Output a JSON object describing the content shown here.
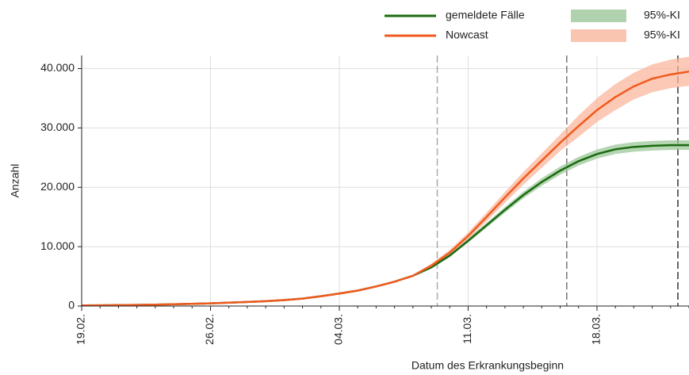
{
  "chart_data": {
    "type": "line",
    "x_label": "Datum des Erkrankungsbeginn",
    "y_label": "Anzahl",
    "categories": [
      "19.02.",
      null,
      null,
      null,
      null,
      null,
      null,
      "26.02.",
      null,
      null,
      null,
      null,
      null,
      null,
      "04.03.",
      null,
      null,
      null,
      null,
      null,
      null,
      "11.03.",
      null,
      null,
      null,
      null,
      null,
      null,
      "18.03.",
      null,
      null,
      null,
      null,
      null
    ],
    "ylim": [
      0,
      42200
    ],
    "yticks": [
      0,
      {
        "value": 10000,
        "label": "10.000"
      },
      {
        "value": 20000,
        "label": "20.000"
      },
      {
        "value": 30000,
        "label": "30.000"
      },
      {
        "value": 40000,
        "label": "40.000"
      }
    ],
    "grid": true,
    "series": [
      {
        "name": "gemeldete Fälle",
        "color": "#1a6b10",
        "values": [
          100,
          120,
          150,
          190,
          240,
          300,
          360,
          450,
          560,
          680,
          820,
          1000,
          1250,
          1650,
          2100,
          2600,
          3300,
          4100,
          5100,
          6500,
          8500,
          11000,
          13600,
          16200,
          18700,
          20900,
          22800,
          24400,
          25600,
          26400,
          26800,
          27000,
          27100,
          27100
        ],
        "band": {
          "name": "95%-KI",
          "color": "#9cc79a",
          "lower": [
            97,
            116,
            146,
            184,
            233,
            291,
            349,
            437,
            543,
            660,
            795,
            970,
            1213,
            1600,
            2037,
            2522,
            3201,
            3977,
            4947,
            6305,
            8245,
            10670,
            13192,
            15714,
            18139,
            20273,
            22116,
            23668,
            24832,
            25608,
            25996,
            26190,
            26287,
            26287
          ],
          "upper": [
            103,
            124,
            155,
            196,
            247,
            309,
            371,
            464,
            577,
            700,
            845,
            1030,
            1288,
            1700,
            2163,
            2678,
            3399,
            4223,
            5253,
            6695,
            8755,
            11330,
            14008,
            16686,
            19261,
            21527,
            23484,
            25132,
            26368,
            27192,
            27604,
            27810,
            27913,
            27913
          ]
        }
      },
      {
        "name": "Nowcast",
        "color": "#f05a1e",
        "values": [
          100,
          120,
          150,
          190,
          240,
          300,
          360,
          450,
          560,
          680,
          820,
          1000,
          1250,
          1650,
          2100,
          2600,
          3300,
          4100,
          5100,
          6800,
          9000,
          11800,
          15000,
          18300,
          21500,
          24500,
          27500,
          30300,
          33000,
          35200,
          37000,
          38300,
          39000,
          39500
        ],
        "band": {
          "name": "95%-KI",
          "color": "#f9b79c",
          "lower": [
            97,
            116,
            146,
            184,
            233,
            291,
            349,
            437,
            543,
            660,
            795,
            970,
            1213,
            1600,
            2037,
            2522,
            3201,
            3977,
            4947,
            6460,
            8550,
            11210,
            14250,
            17385,
            20425,
            23275,
            26125,
            28500,
            31000,
            33000,
            34800,
            36000,
            36700,
            37100
          ],
          "upper": [
            103,
            124,
            155,
            196,
            247,
            309,
            371,
            464,
            577,
            700,
            845,
            1030,
            1288,
            1700,
            2163,
            2678,
            3399,
            4223,
            5253,
            7140,
            9450,
            12390,
            15750,
            19215,
            22575,
            25725,
            28875,
            32100,
            35000,
            37400,
            39300,
            40700,
            41500,
            42000
          ]
        }
      }
    ]
  }
}
